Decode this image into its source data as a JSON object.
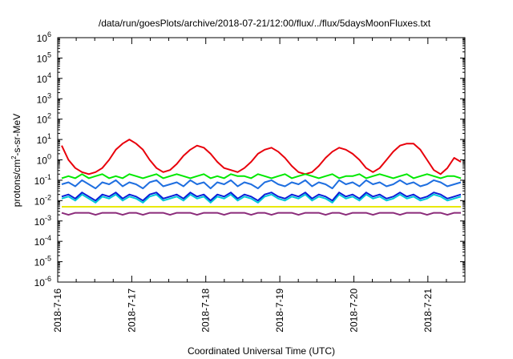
{
  "chart_data": {
    "type": "line",
    "title": "/data/run/goesPlots/archive/2018-07-21/12:00/flux/../flux/5daysMoonFluxes.txt",
    "xlabel": "Coordinated Universal Time (UTC)",
    "ylabel": {
      "pre": "protons/cm",
      "sup": "2",
      "post": "-s-sr-MeV"
    },
    "y_scale": "log",
    "ylim_exponents": [
      -6,
      6
    ],
    "y_ticks": [
      {
        "base": "10",
        "exp": "6"
      },
      {
        "base": "10",
        "exp": "5"
      },
      {
        "base": "10",
        "exp": "4"
      },
      {
        "base": "10",
        "exp": "3"
      },
      {
        "base": "10",
        "exp": "2"
      },
      {
        "base": "10",
        "exp": "1"
      },
      {
        "base": "10",
        "exp": "0"
      },
      {
        "base": "10",
        "exp": "-1"
      },
      {
        "base": "10",
        "exp": "-2"
      },
      {
        "base": "10",
        "exp": "-3"
      },
      {
        "base": "10",
        "exp": "-4"
      },
      {
        "base": "10",
        "exp": "-5"
      },
      {
        "base": "10",
        "exp": "-6"
      }
    ],
    "x_ticks": [
      "2018-7-16",
      "2018-7-17",
      "2018-7-18",
      "2018-7-19",
      "2018-7-20",
      "2018-7-21"
    ],
    "xlim_days": [
      "2018-07-16",
      "2018-07-21 12:00"
    ],
    "grid": false,
    "legend": "none",
    "series": [
      {
        "color": "#e8000b",
        "log10_values": [
          0.7,
          0.0,
          -0.4,
          -0.6,
          -0.7,
          -0.6,
          -0.4,
          0.0,
          0.5,
          0.8,
          1.0,
          0.8,
          0.5,
          0.0,
          -0.4,
          -0.6,
          -0.5,
          -0.2,
          0.2,
          0.5,
          0.7,
          0.6,
          0.3,
          -0.1,
          -0.4,
          -0.5,
          -0.6,
          -0.4,
          -0.1,
          0.3,
          0.5,
          0.6,
          0.4,
          0.1,
          -0.3,
          -0.6,
          -0.7,
          -0.6,
          -0.3,
          0.1,
          0.4,
          0.6,
          0.5,
          0.3,
          0.0,
          -0.4,
          -0.6,
          -0.4,
          0.0,
          0.4,
          0.7,
          0.8,
          0.8,
          0.5,
          0.0,
          -0.5,
          -0.7,
          -0.4,
          0.1,
          -0.1
        ]
      },
      {
        "color": "#00e800",
        "log10_values": [
          -0.9,
          -0.8,
          -0.9,
          -0.7,
          -0.9,
          -0.8,
          -0.7,
          -0.9,
          -0.8,
          -0.9,
          -0.7,
          -0.8,
          -0.9,
          -0.8,
          -0.7,
          -0.9,
          -0.8,
          -0.7,
          -0.8,
          -0.9,
          -0.8,
          -0.7,
          -0.9,
          -0.8,
          -0.9,
          -0.7,
          -0.8,
          -0.8,
          -0.9,
          -0.7,
          -0.8,
          -0.9,
          -0.8,
          -0.7,
          -0.9,
          -0.8,
          -0.7,
          -0.8,
          -0.9,
          -0.8,
          -0.7,
          -0.9,
          -0.8,
          -0.8,
          -0.7,
          -0.9,
          -0.8,
          -0.7,
          -0.8,
          -0.9,
          -0.8,
          -0.7,
          -0.9,
          -0.8,
          -0.7,
          -0.8,
          -0.9,
          -0.8,
          -0.8,
          -0.9
        ]
      },
      {
        "color": "#1f6fe0",
        "log10_values": [
          -1.2,
          -1.1,
          -1.3,
          -1.0,
          -1.2,
          -1.4,
          -1.1,
          -1.2,
          -1.0,
          -1.3,
          -1.1,
          -1.2,
          -1.4,
          -1.1,
          -1.0,
          -1.3,
          -1.2,
          -1.1,
          -1.3,
          -1.0,
          -1.2,
          -1.1,
          -1.4,
          -1.1,
          -1.2,
          -1.0,
          -1.3,
          -1.1,
          -1.2,
          -1.4,
          -1.1,
          -1.0,
          -1.2,
          -1.3,
          -1.1,
          -1.2,
          -1.0,
          -1.3,
          -1.1,
          -1.2,
          -1.4,
          -1.0,
          -1.2,
          -1.1,
          -1.3,
          -1.0,
          -1.2,
          -1.1,
          -1.3,
          -1.2,
          -1.0,
          -1.2,
          -1.1,
          -1.3,
          -1.2,
          -1.0,
          -1.1,
          -1.3,
          -1.2,
          -1.1
        ]
      },
      {
        "color": "#00c8d8",
        "log10_values": [
          -1.9,
          -1.8,
          -2.0,
          -1.7,
          -1.9,
          -2.1,
          -1.8,
          -1.9,
          -1.7,
          -2.0,
          -1.8,
          -1.9,
          -2.1,
          -1.8,
          -1.7,
          -2.0,
          -1.9,
          -1.8,
          -2.0,
          -1.7,
          -1.9,
          -1.8,
          -2.1,
          -1.8,
          -1.9,
          -1.7,
          -2.0,
          -1.8,
          -1.9,
          -2.1,
          -1.8,
          -1.7,
          -1.9,
          -2.0,
          -1.8,
          -1.9,
          -1.7,
          -2.0,
          -1.8,
          -1.9,
          -2.1,
          -1.7,
          -1.9,
          -1.8,
          -2.0,
          -1.7,
          -1.9,
          -1.8,
          -2.0,
          -1.9,
          -1.7,
          -1.9,
          -1.8,
          -2.0,
          -1.9,
          -1.7,
          -1.8,
          -2.0,
          -1.9,
          -1.8
        ]
      },
      {
        "color": "#0a1ed8",
        "log10_values": [
          -1.8,
          -1.7,
          -1.9,
          -1.6,
          -1.8,
          -2.0,
          -1.7,
          -1.8,
          -1.6,
          -1.9,
          -1.7,
          -1.8,
          -2.0,
          -1.7,
          -1.6,
          -1.9,
          -1.8,
          -1.7,
          -1.9,
          -1.6,
          -1.8,
          -1.7,
          -2.0,
          -1.7,
          -1.8,
          -1.6,
          -1.9,
          -1.7,
          -1.8,
          -2.0,
          -1.7,
          -1.6,
          -1.8,
          -1.9,
          -1.7,
          -1.8,
          -1.6,
          -1.9,
          -1.7,
          -1.8,
          -2.0,
          -1.6,
          -1.8,
          -1.7,
          -1.9,
          -1.6,
          -1.8,
          -1.7,
          -1.9,
          -1.8,
          -1.6,
          -1.8,
          -1.7,
          -1.9,
          -1.8,
          -1.6,
          -1.7,
          -1.9,
          -1.8,
          -1.7
        ]
      },
      {
        "color": "#e8e800",
        "log10_values": [
          -2.3,
          -2.3,
          -2.3,
          -2.3,
          -2.3,
          -2.3,
          -2.3,
          -2.3,
          -2.3,
          -2.3,
          -2.3,
          -2.3,
          -2.3,
          -2.3,
          -2.3,
          -2.3,
          -2.3,
          -2.3,
          -2.3,
          -2.3,
          -2.3,
          -2.3,
          -2.3,
          -2.3,
          -2.3,
          -2.3,
          -2.3,
          -2.3,
          -2.3,
          -2.3,
          -2.3,
          -2.3,
          -2.3,
          -2.3,
          -2.3,
          -2.3,
          -2.3,
          -2.3,
          -2.3,
          -2.3,
          -2.3,
          -2.3,
          -2.3,
          -2.3,
          -2.3,
          -2.3,
          -2.3,
          -2.3,
          -2.3,
          -2.3,
          -2.3,
          -2.3,
          -2.3,
          -2.3,
          -2.3,
          -2.3,
          -2.3,
          -2.3,
          -2.3,
          -2.3
        ]
      },
      {
        "color": "#8b2b7a",
        "log10_values": [
          -2.6,
          -2.7,
          -2.6,
          -2.6,
          -2.6,
          -2.7,
          -2.6,
          -2.6,
          -2.6,
          -2.7,
          -2.6,
          -2.6,
          -2.7,
          -2.6,
          -2.6,
          -2.6,
          -2.7,
          -2.6,
          -2.6,
          -2.6,
          -2.7,
          -2.6,
          -2.6,
          -2.6,
          -2.7,
          -2.6,
          -2.6,
          -2.6,
          -2.7,
          -2.6,
          -2.6,
          -2.7,
          -2.6,
          -2.6,
          -2.6,
          -2.7,
          -2.6,
          -2.6,
          -2.6,
          -2.7,
          -2.6,
          -2.6,
          -2.7,
          -2.6,
          -2.6,
          -2.6,
          -2.7,
          -2.6,
          -2.6,
          -2.6,
          -2.7,
          -2.6,
          -2.6,
          -2.6,
          -2.7,
          -2.6,
          -2.6,
          -2.7,
          -2.6,
          -2.6
        ]
      }
    ]
  }
}
